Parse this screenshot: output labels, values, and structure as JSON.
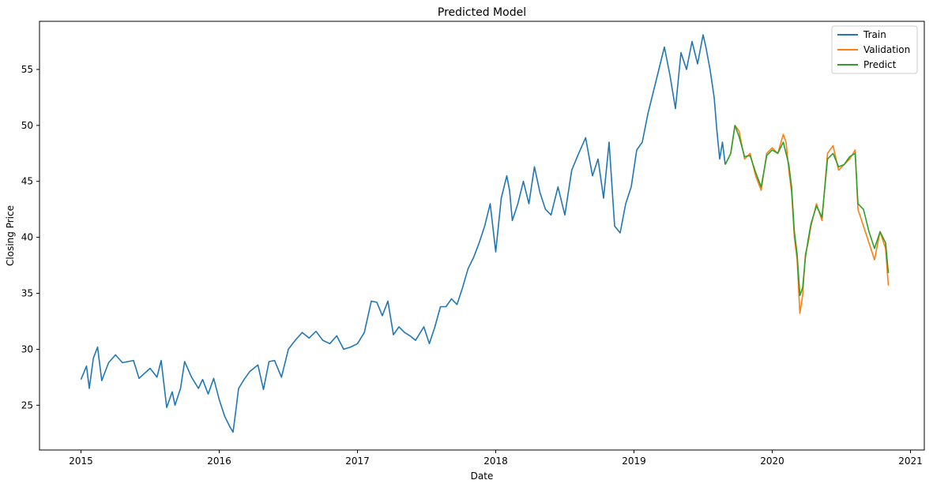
{
  "chart_data": {
    "type": "line",
    "title": "Predicted Model",
    "xlabel": "Date",
    "ylabel": "Closing Price",
    "xlim": [
      2014.7,
      2021.1
    ],
    "ylim": [
      21,
      59.3
    ],
    "x_ticks": [
      2015,
      2016,
      2017,
      2018,
      2019,
      2020,
      2021
    ],
    "x_tick_labels": [
      "2015",
      "2016",
      "2017",
      "2018",
      "2019",
      "2020",
      "2021"
    ],
    "y_ticks": [
      25,
      30,
      35,
      40,
      45,
      50,
      55
    ],
    "y_tick_labels": [
      "25",
      "30",
      "35",
      "40",
      "45",
      "50",
      "55"
    ],
    "grid": false,
    "legend_position": "top-right",
    "series": [
      {
        "name": "Train",
        "color": "#1f77b4",
        "x": [
          2015.0,
          2015.04,
          2015.06,
          2015.09,
          2015.12,
          2015.15,
          2015.2,
          2015.25,
          2015.3,
          2015.38,
          2015.42,
          2015.5,
          2015.55,
          2015.58,
          2015.62,
          2015.66,
          2015.68,
          2015.72,
          2015.75,
          2015.8,
          2015.85,
          2015.88,
          2015.92,
          2015.96,
          2016.0,
          2016.04,
          2016.08,
          2016.1,
          2016.12,
          2016.14,
          2016.18,
          2016.22,
          2016.28,
          2016.32,
          2016.36,
          2016.4,
          2016.45,
          2016.5,
          2016.55,
          2016.6,
          2016.65,
          2016.7,
          2016.75,
          2016.8,
          2016.85,
          2016.9,
          2016.95,
          2017.0,
          2017.05,
          2017.1,
          2017.14,
          2017.18,
          2017.22,
          2017.26,
          2017.3,
          2017.34,
          2017.38,
          2017.42,
          2017.48,
          2017.52,
          2017.56,
          2017.6,
          2017.64,
          2017.68,
          2017.72,
          2017.76,
          2017.8,
          2017.84,
          2017.88,
          2017.92,
          2017.96,
          2018.0,
          2018.04,
          2018.08,
          2018.1,
          2018.12,
          2018.16,
          2018.2,
          2018.24,
          2018.28,
          2018.32,
          2018.36,
          2018.4,
          2018.45,
          2018.5,
          2018.55,
          2018.6,
          2018.65,
          2018.7,
          2018.74,
          2018.78,
          2018.82,
          2018.86,
          2018.9,
          2018.94,
          2018.98,
          2019.02,
          2019.06,
          2019.1,
          2019.14,
          2019.18,
          2019.22,
          2019.26,
          2019.3,
          2019.34,
          2019.38,
          2019.42,
          2019.46,
          2019.5,
          2019.52,
          2019.55,
          2019.58,
          2019.6,
          2019.62,
          2019.64,
          2019.66
        ],
        "y": [
          27.3,
          28.5,
          26.5,
          29.2,
          30.2,
          27.2,
          28.8,
          29.5,
          28.8,
          29.0,
          27.4,
          28.3,
          27.5,
          29.0,
          24.8,
          26.2,
          25.0,
          26.5,
          28.9,
          27.5,
          26.5,
          27.3,
          26.0,
          27.4,
          25.5,
          24.0,
          23.0,
          22.6,
          24.5,
          26.5,
          27.3,
          28.0,
          28.6,
          26.4,
          28.9,
          29.0,
          27.5,
          30.0,
          30.8,
          31.5,
          31.0,
          31.6,
          30.8,
          30.5,
          31.2,
          30.0,
          30.2,
          30.5,
          31.5,
          34.3,
          34.2,
          33.0,
          34.3,
          31.3,
          32.0,
          31.5,
          31.2,
          30.8,
          32.0,
          30.5,
          32.0,
          33.8,
          33.8,
          34.5,
          34.0,
          35.5,
          37.2,
          38.2,
          39.5,
          41.0,
          43.0,
          38.7,
          43.5,
          45.5,
          44.2,
          41.5,
          43.0,
          45.0,
          43.0,
          46.3,
          44.0,
          42.5,
          42.0,
          44.5,
          42.0,
          46.0,
          47.5,
          48.9,
          45.5,
          47.0,
          43.5,
          48.5,
          41.0,
          40.4,
          43.0,
          44.5,
          47.8,
          48.5,
          51.0,
          53.0,
          55.0,
          57.0,
          54.5,
          51.5,
          56.5,
          55.0,
          57.5,
          55.5,
          58.1,
          57.0,
          55.0,
          52.5,
          49.5,
          47.0,
          48.5,
          46.5
        ]
      },
      {
        "name": "Validation",
        "color": "#ff7f0e",
        "x": [
          2019.66,
          2019.7,
          2019.73,
          2019.76,
          2019.8,
          2019.84,
          2019.88,
          2019.92,
          2019.96,
          2020.0,
          2020.04,
          2020.08,
          2020.1,
          2020.12,
          2020.14,
          2020.16,
          2020.18,
          2020.2,
          2020.22,
          2020.24,
          2020.26,
          2020.28,
          2020.32,
          2020.36,
          2020.4,
          2020.44,
          2020.48,
          2020.52,
          2020.56,
          2020.6,
          2020.62,
          2020.66,
          2020.7,
          2020.74,
          2020.78,
          2020.82,
          2020.84
        ],
        "y": [
          46.5,
          47.5,
          50.0,
          49.5,
          47.0,
          47.5,
          45.5,
          44.2,
          47.5,
          48.0,
          47.5,
          49.2,
          48.5,
          46.0,
          44.0,
          40.0,
          38.0,
          33.2,
          34.8,
          38.5,
          39.5,
          41.0,
          43.0,
          41.5,
          47.5,
          48.2,
          46.0,
          46.5,
          47.0,
          47.8,
          42.5,
          41.0,
          39.5,
          38.0,
          40.5,
          39.0,
          35.7
        ]
      },
      {
        "name": "Predict",
        "color": "#2ca02c",
        "x": [
          2019.66,
          2019.7,
          2019.73,
          2019.76,
          2019.8,
          2019.84,
          2019.88,
          2019.92,
          2019.96,
          2020.0,
          2020.04,
          2020.08,
          2020.1,
          2020.12,
          2020.14,
          2020.16,
          2020.18,
          2020.2,
          2020.22,
          2020.24,
          2020.26,
          2020.28,
          2020.32,
          2020.36,
          2020.4,
          2020.44,
          2020.48,
          2020.52,
          2020.56,
          2020.6,
          2020.62,
          2020.66,
          2020.7,
          2020.74,
          2020.78,
          2020.82,
          2020.84
        ],
        "y": [
          46.5,
          47.5,
          50.0,
          49.0,
          47.2,
          47.3,
          45.8,
          44.5,
          47.3,
          47.8,
          47.5,
          48.5,
          47.5,
          46.5,
          44.5,
          40.5,
          38.5,
          34.8,
          35.5,
          38.2,
          39.8,
          41.2,
          42.8,
          41.8,
          47.0,
          47.5,
          46.3,
          46.5,
          47.2,
          47.5,
          43.0,
          42.5,
          40.5,
          39.0,
          40.5,
          39.5,
          36.8
        ]
      }
    ]
  }
}
